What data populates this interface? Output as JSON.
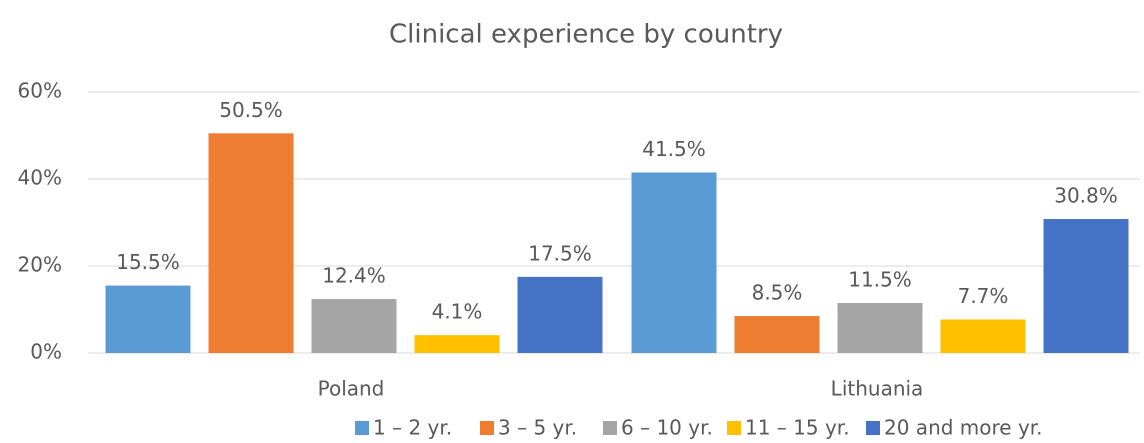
{
  "chart_data": {
    "type": "bar",
    "title": "Clinical experience by country",
    "categories": [
      "Poland",
      "Lithuania"
    ],
    "series": [
      {
        "name": "1 – 2 yr.",
        "color": "#5b9bd5",
        "values": [
          15.5,
          41.5
        ],
        "value_labels": [
          "15.5%",
          "41.5%"
        ]
      },
      {
        "name": "3 – 5 yr.",
        "color": "#ed7d31",
        "values": [
          50.5,
          8.5
        ],
        "value_labels": [
          "50.5%",
          "8.5%"
        ]
      },
      {
        "name": "6 – 10 yr.",
        "color": "#a5a5a5",
        "values": [
          12.4,
          11.5
        ],
        "value_labels": [
          "12.4%",
          "11.5%"
        ]
      },
      {
        "name": "11 – 15 yr.",
        "color": "#ffc000",
        "values": [
          4.1,
          7.7
        ],
        "value_labels": [
          "4.1%",
          "7.7%"
        ]
      },
      {
        "name": "20 and more yr.",
        "color": "#4472c4",
        "values": [
          17.5,
          30.8
        ],
        "value_labels": [
          "17.5%",
          "30.8%"
        ]
      }
    ],
    "ylim": [
      0,
      60
    ],
    "yticks": [
      {
        "value": 0,
        "label": "0%"
      },
      {
        "value": 20,
        "label": "20%"
      },
      {
        "value": 40,
        "label": "40%"
      },
      {
        "value": 60,
        "label": "60%"
      }
    ],
    "grid": true,
    "legend": "bottom"
  }
}
